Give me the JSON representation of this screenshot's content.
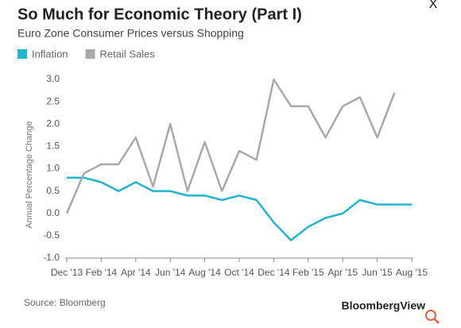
{
  "close_button": "X",
  "chart_data": {
    "type": "line",
    "title": "So Much for Economic Theory (Part I)",
    "subtitle": "Euro Zone Consumer Prices versus Shopping",
    "ylabel": "Annual Percentage Change",
    "source": "Source: Bloomberg",
    "brand": "BloombergView",
    "categories": [
      "Dec '13",
      null,
      "Feb '14",
      null,
      "Apr '14",
      null,
      "Jun '14",
      null,
      "Aug '14",
      null,
      "Oct '14",
      null,
      "Dec '14",
      null,
      "Feb '15",
      null,
      "Apr '15",
      null,
      "Jun '15",
      null,
      "Aug '15"
    ],
    "series": [
      {
        "name": "Inflation",
        "color": "#22b5d0",
        "values": [
          0.8,
          0.8,
          0.7,
          0.5,
          0.7,
          0.5,
          0.5,
          0.4,
          0.4,
          0.3,
          0.4,
          0.3,
          -0.2,
          -0.6,
          -0.3,
          -0.1,
          0.0,
          0.3,
          0.2,
          0.2,
          0.2
        ]
      },
      {
        "name": "Retail Sales",
        "color": "#a8a8ae",
        "values": [
          0.0,
          0.9,
          1.1,
          1.1,
          1.7,
          0.6,
          2.0,
          0.5,
          1.6,
          0.5,
          1.4,
          1.2,
          3.0,
          2.4,
          2.4,
          1.7,
          2.4,
          2.6,
          1.7,
          2.7,
          null
        ]
      }
    ],
    "ylim": [
      -1.0,
      3.0
    ],
    "yticks": [
      {
        "value": 3.0,
        "label": "3.0"
      },
      2.5,
      {
        "value": 2.0,
        "label": "2.0"
      },
      1.5,
      {
        "value": 1.0,
        "label": "1.0"
      },
      0.5,
      {
        "value": 0.0,
        "label": "0.0"
      },
      -0.5,
      {
        "value": -1.0,
        "label": "-1.0"
      }
    ],
    "grid": false,
    "legend": "top-left"
  }
}
